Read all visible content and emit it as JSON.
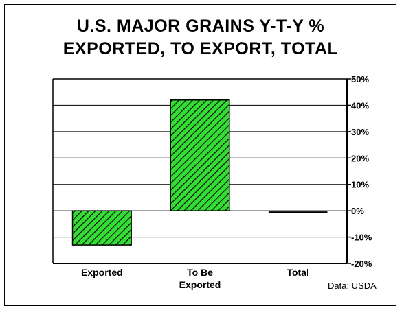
{
  "chart_data": {
    "type": "bar",
    "title_lines": [
      "U.S. MAJOR GRAINS Y-T-Y %",
      "EXPORTED, TO EXPORT, TOTAL"
    ],
    "categories": [
      [
        "Exported"
      ],
      [
        "To Be",
        "Exported"
      ],
      [
        "Total"
      ]
    ],
    "values": [
      -13,
      42,
      -0.5
    ],
    "ylim": [
      -20,
      50
    ],
    "ytick_step": 10,
    "ytick_labels": [
      "-20%",
      "-10%",
      "0%",
      "10%",
      "20%",
      "30%",
      "40%",
      "50%"
    ],
    "grid": true,
    "y_axis_side": "right",
    "bar_fill": "#33dd33",
    "bar_hatch": "diagonal",
    "source": "Data: USDA"
  }
}
